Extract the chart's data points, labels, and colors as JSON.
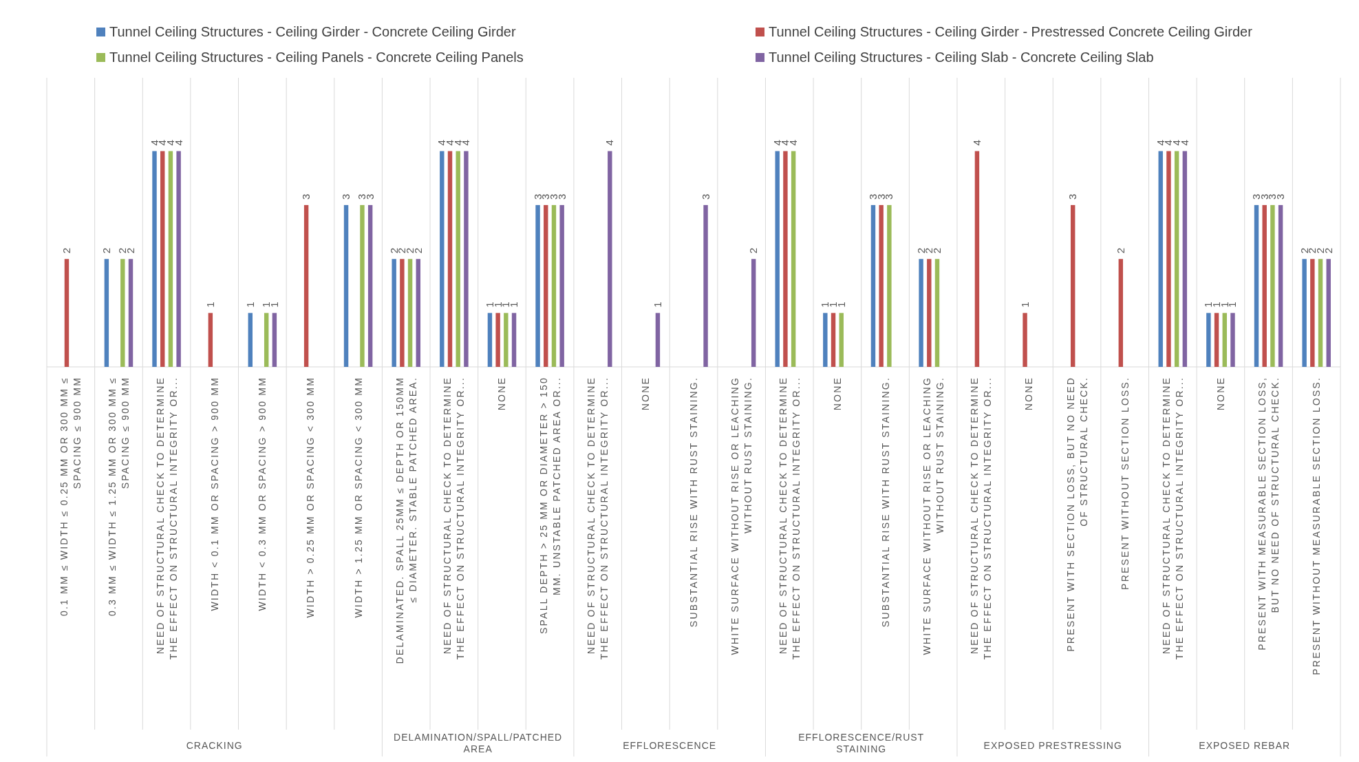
{
  "chart_data": {
    "type": "bar",
    "legend": "top",
    "data_labels": true,
    "categories": [
      "0.1 MM ≤ WIDTH ≤ 0.25 MM OR 300 MM ≤ SPACING ≤ 900 MM",
      "0.3 MM ≤ WIDTH ≤ 1.25 MM OR 300 MM ≤ SPACING ≤ 900 MM",
      "NEED OF STRUCTURAL CHECK TO DETERMINE THE EFFECT ON STRUCTURAL INTEGRITY OR...",
      "WIDTH < 0.1 MM OR SPACING > 900 MM",
      "WIDTH < 0.3 MM OR SPACING > 900 MM",
      "WIDTH > 0.25 MM OR SPACING < 300 MM",
      "WIDTH > 1.25 MM OR SPACING < 300 MM",
      "DELAMINATED. SPALL 25MM ≤ DEPTH OR 150MM ≤ DIAMETER. STABLE PATCHED AREA.",
      "NEED OF STRUCTURAL CHECK TO DETERMINE THE EFFECT ON STRUCTURAL INTEGRITY OR...",
      "NONE",
      "SPALL DEPTH > 25 MM OR DIAMETER > 150 MM. UNSTABLE PATCHED AREA OR...",
      "NEED OF STRUCTURAL CHECK TO DETERMINE THE EFFECT ON STRUCTURAL INTEGRITY OR...",
      "NONE",
      "SUBSTANTIAL RISE WITH RUST STAINING.",
      "WHITE SURFACE WITHOUT RISE OR LEACHING WITHOUT RUST STAINING.",
      "NEED OF STRUCTURAL CHECK TO DETERMINE THE EFFECT ON STRUCTURAL INTEGRITY OR...",
      "NONE",
      "SUBSTANTIAL RISE WITH RUST STAINING.",
      "WHITE SURFACE WITHOUT RISE OR LEACHING WITHOUT RUST STAINING.",
      "NEED OF STRUCTURAL CHECK TO DETERMINE THE EFFECT ON STRUCTURAL INTEGRITY OR...",
      "NONE",
      "PRESENT WITH SECTION LOSS, BUT NO NEED OF STRUCTURAL CHECK.",
      "PRESENT WITHOUT SECTION LOSS.",
      "NEED OF STRUCTURAL CHECK TO DETERMINE THE EFFECT ON STRUCTURAL INTEGRITY OR...",
      "NONE",
      "PRESENT WITH MEASURABLE SECTION LOSS, BUT NO NEED OF STRUCTURAL CHECK.",
      "PRESENT WITHOUT MEASURABLE SECTION LOSS."
    ],
    "series": [
      {
        "name": "Tunnel Ceiling Structures - Ceiling Girder - Concrete Ceiling Girder",
        "color": "#4f81bd",
        "values": [
          null,
          2,
          4,
          null,
          1,
          null,
          3,
          2,
          4,
          1,
          3,
          null,
          null,
          null,
          null,
          4,
          1,
          3,
          2,
          null,
          null,
          null,
          null,
          4,
          1,
          3,
          2
        ]
      },
      {
        "name": "Tunnel Ceiling Structures - Ceiling Girder - Prestressed Concrete Ceiling Girder",
        "color": "#c0504d",
        "values": [
          2,
          null,
          4,
          1,
          null,
          3,
          null,
          2,
          4,
          1,
          3,
          null,
          null,
          null,
          null,
          4,
          1,
          3,
          2,
          4,
          1,
          3,
          2,
          4,
          1,
          3,
          2
        ]
      },
      {
        "name": "Tunnel Ceiling Structures - Ceiling Panels - Concrete Ceiling Panels",
        "color": "#9bbb59",
        "values": [
          null,
          2,
          4,
          null,
          1,
          null,
          3,
          2,
          4,
          1,
          3,
          null,
          null,
          null,
          null,
          4,
          1,
          3,
          2,
          null,
          null,
          null,
          null,
          4,
          1,
          3,
          2
        ]
      },
      {
        "name": "Tunnel Ceiling Structures - Ceiling Slab - Concrete Ceiling Slab",
        "color": "#8064a2",
        "values": [
          null,
          2,
          4,
          null,
          1,
          null,
          3,
          2,
          4,
          1,
          3,
          4,
          1,
          3,
          2,
          null,
          null,
          null,
          null,
          null,
          null,
          null,
          null,
          4,
          1,
          3,
          2
        ]
      }
    ],
    "annotations": [
      "CRACKING",
      "DELAMINATION/SPALL/PATCHED AREA",
      "EFFLORESCENCE",
      "EFFLORESCENCE/RUST STAINING",
      "EXPOSED PRESTRESSING",
      "EXPOSED REBAR"
    ]
  }
}
